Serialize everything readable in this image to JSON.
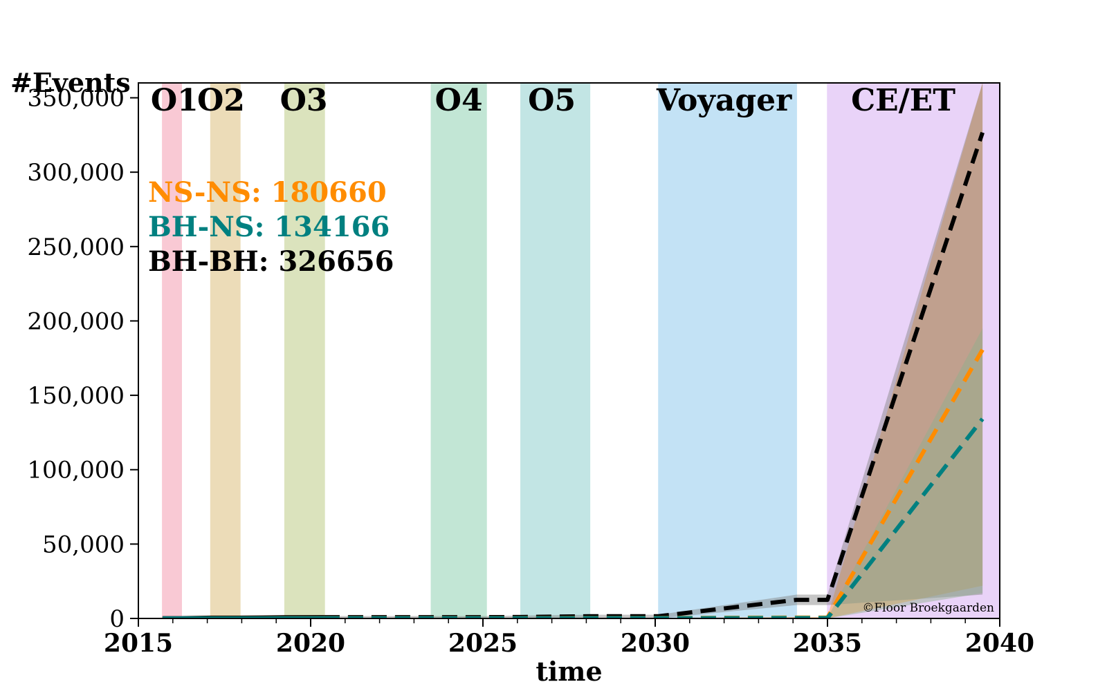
{
  "chart_data": {
    "type": "line",
    "xlabel": "time",
    "ylabel": "#Events",
    "xlim": [
      2015,
      2040
    ],
    "ylim": [
      0,
      360000
    ],
    "x_ticks": [
      2015,
      2020,
      2025,
      2030,
      2035,
      2040
    ],
    "x_tick_labels": [
      "2015",
      "2020",
      "2025",
      "2030",
      "2035",
      "2040"
    ],
    "y_ticks": [
      0,
      50000,
      100000,
      150000,
      200000,
      250000,
      300000,
      350000
    ],
    "y_tick_labels": [
      "0",
      "50,000",
      "100,000",
      "150,000",
      "200,000",
      "250,000",
      "300,000",
      "350,000"
    ],
    "observing_runs": [
      {
        "label": "O1",
        "start": 2015.7,
        "end": 2016.25,
        "color": "#f9c9d4"
      },
      {
        "label": "O2",
        "start": 2017.1,
        "end": 2017.95,
        "color": "#ecdcb8"
      },
      {
        "label": "O3",
        "start": 2019.25,
        "end": 2020.4,
        "color": "#dbe3bd"
      },
      {
        "label": "O4",
        "start": 2023.5,
        "end": 2025.1,
        "color": "#c2e6d5"
      },
      {
        "label": "O5",
        "start": 2026.1,
        "end": 2028.1,
        "color": "#c2e5e4"
      },
      {
        "label": "Voyager",
        "start": 2030.1,
        "end": 2034.1,
        "color": "#c3e2f5"
      },
      {
        "label": "CE/ET",
        "start": 2035.0,
        "end": 2040.0,
        "color": "#e9d3f8"
      }
    ],
    "series": [
      {
        "name": "BH-BH",
        "color": "#000000",
        "total": 326656,
        "x": [
          2015.7,
          2016.25,
          2017.1,
          2017.95,
          2019.25,
          2020.4,
          2023.5,
          2025.1,
          2026.1,
          2028.1,
          2030.1,
          2034.1,
          2035.0,
          2039.5
        ],
        "y": [
          200,
          200,
          500,
          500,
          800,
          900,
          900,
          900,
          1000,
          1500,
          1500,
          12500,
          12500,
          326656
        ],
        "band_low": [
          0,
          0,
          0,
          0,
          0,
          0,
          0,
          0,
          0,
          0,
          0,
          9000,
          9000,
          16000
        ],
        "band_high": [
          500,
          500,
          900,
          900,
          1500,
          1600,
          1600,
          1600,
          2000,
          2500,
          2500,
          16000,
          16000,
          360000
        ]
      },
      {
        "name": "NS-NS",
        "color": "#ff8c00",
        "total": 180660,
        "x": [
          2015.7,
          2016.25,
          2017.1,
          2017.95,
          2019.25,
          2020.4,
          2023.5,
          2025.1,
          2026.1,
          2028.1,
          2030.1,
          2034.1,
          2035.0,
          2039.5
        ],
        "y": [
          0,
          0,
          50,
          50,
          100,
          200,
          200,
          200,
          200,
          300,
          300,
          600,
          600,
          180660
        ],
        "band_low": [
          0,
          0,
          0,
          0,
          0,
          0,
          0,
          0,
          0,
          0,
          0,
          0,
          0,
          22000
        ],
        "band_high": [
          50,
          50,
          100,
          100,
          200,
          300,
          300,
          300,
          300,
          400,
          400,
          900,
          900,
          360000
        ]
      },
      {
        "name": "BH-NS",
        "color": "#008080",
        "total": 134166,
        "x": [
          2015.7,
          2016.25,
          2017.1,
          2017.95,
          2019.25,
          2020.4,
          2023.5,
          2025.1,
          2026.1,
          2028.1,
          2030.1,
          2034.1,
          2035.0,
          2039.5
        ],
        "y": [
          0,
          0,
          0,
          0,
          50,
          100,
          100,
          100,
          100,
          150,
          150,
          300,
          300,
          134166
        ],
        "band_low": [
          0,
          0,
          0,
          0,
          0,
          0,
          0,
          0,
          0,
          0,
          0,
          0,
          0,
          17000
        ],
        "band_high": [
          20,
          20,
          40,
          40,
          100,
          200,
          200,
          200,
          200,
          300,
          300,
          500,
          500,
          195000
        ]
      }
    ],
    "count_labels": [
      {
        "name": "NS-NS",
        "text": "NS-NS: 180660",
        "color": "#ff8c00"
      },
      {
        "name": "BH-NS",
        "text": "BH-NS: 134166",
        "color": "#008080"
      },
      {
        "name": "BH-BH",
        "text": "BH-BH: 326656",
        "color": "#000000"
      }
    ],
    "credit": "©Floor Broekgaarden",
    "grid": false
  }
}
